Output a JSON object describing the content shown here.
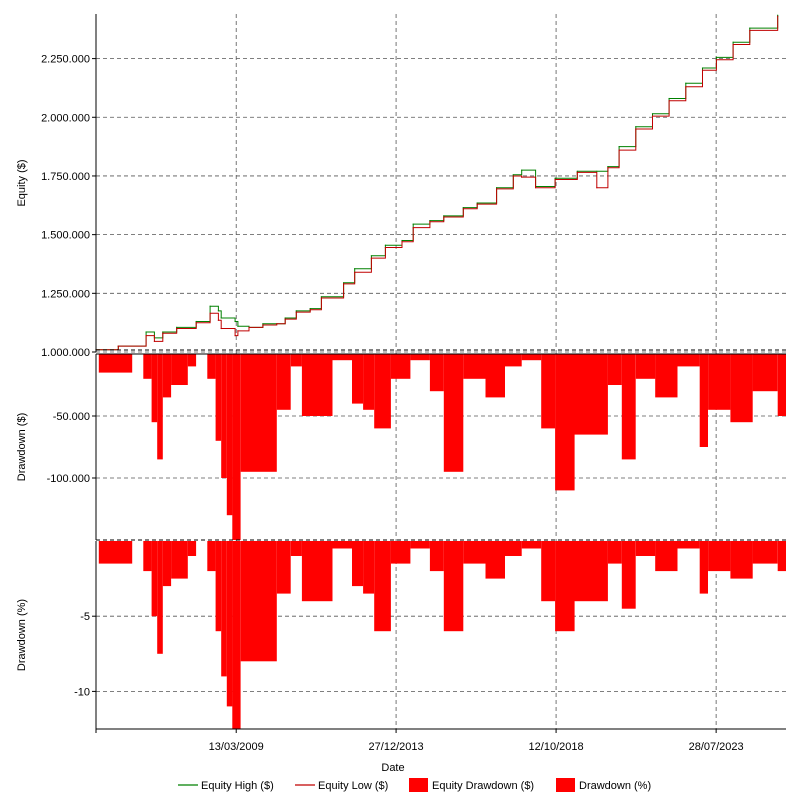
{
  "chart_data": [
    {
      "type": "line",
      "ylabel": "Equity ($)",
      "ylim": [
        1000000,
        2440000
      ],
      "yticks": [
        1000000,
        1250000,
        1500000,
        1750000,
        2000000,
        2250000
      ],
      "ytick_labels": [
        "1.000.000",
        "1.250.000",
        "1.500.000",
        "1.750.000",
        "2.000.000",
        "2.250.000"
      ],
      "grid": true,
      "series": [
        {
          "name": "Equity High ($)",
          "color": "#008000",
          "x": [
            "2005-01",
            "2005-09",
            "2006-07",
            "2006-10",
            "2007-01",
            "2007-06",
            "2008-01",
            "2008-06",
            "2008-09",
            "2008-10",
            "2009-03",
            "2009-04",
            "2009-08",
            "2010-01",
            "2010-06",
            "2010-09",
            "2011-01",
            "2011-06",
            "2011-10",
            "2012-06",
            "2012-10",
            "2013-04",
            "2013-09",
            "2014-03",
            "2014-07",
            "2015-01",
            "2015-06",
            "2016-01",
            "2016-06",
            "2017-01",
            "2017-07",
            "2017-10",
            "2018-03",
            "2018-10",
            "2019-06",
            "2020-01",
            "2020-05",
            "2020-09",
            "2021-03",
            "2021-09",
            "2022-03",
            "2022-09",
            "2023-03",
            "2023-08",
            "2024-02",
            "2024-08",
            "2025-06"
          ],
          "values": [
            1010000,
            1025000,
            1085000,
            1060000,
            1085000,
            1105000,
            1130000,
            1195000,
            1175000,
            1145000,
            1130000,
            1110000,
            1105000,
            1120000,
            1120000,
            1145000,
            1175000,
            1185000,
            1235000,
            1295000,
            1355000,
            1410000,
            1455000,
            1475000,
            1545000,
            1560000,
            1580000,
            1615000,
            1635000,
            1700000,
            1755000,
            1775000,
            1705000,
            1740000,
            1770000,
            1770000,
            1790000,
            1875000,
            1960000,
            2015000,
            2080000,
            2145000,
            2210000,
            2255000,
            2320000,
            2380000,
            2435000
          ]
        },
        {
          "name": "Equity Low ($)",
          "color": "#c00000",
          "x": [
            "2005-01",
            "2005-09",
            "2006-07",
            "2006-10",
            "2007-01",
            "2007-06",
            "2008-01",
            "2008-06",
            "2008-09",
            "2008-10",
            "2009-03",
            "2009-04",
            "2009-08",
            "2010-01",
            "2010-06",
            "2010-09",
            "2011-01",
            "2011-06",
            "2011-10",
            "2012-06",
            "2012-10",
            "2013-04",
            "2013-09",
            "2014-03",
            "2014-07",
            "2015-01",
            "2015-06",
            "2016-01",
            "2016-06",
            "2017-01",
            "2017-07",
            "2017-10",
            "2018-03",
            "2018-10",
            "2019-06",
            "2020-01",
            "2020-05",
            "2020-09",
            "2021-03",
            "2021-09",
            "2022-03",
            "2022-09",
            "2023-03",
            "2023-08",
            "2024-02",
            "2024-08",
            "2025-06"
          ],
          "values": [
            1010000,
            1025000,
            1070000,
            1045000,
            1080000,
            1100000,
            1125000,
            1165000,
            1135000,
            1100000,
            1070000,
            1090000,
            1105000,
            1115000,
            1120000,
            1140000,
            1170000,
            1180000,
            1230000,
            1290000,
            1340000,
            1400000,
            1445000,
            1470000,
            1530000,
            1555000,
            1575000,
            1610000,
            1630000,
            1695000,
            1750000,
            1745000,
            1700000,
            1735000,
            1765000,
            1700000,
            1785000,
            1860000,
            1950000,
            2005000,
            2070000,
            2130000,
            2200000,
            2245000,
            2310000,
            2370000,
            2430000
          ]
        }
      ]
    },
    {
      "type": "area",
      "ylabel": "Drawdown ($)",
      "ylim": [
        -150000,
        0
      ],
      "yticks": [
        -50000,
        -100000
      ],
      "ytick_labels": [
        "-50.000",
        "-100.000"
      ],
      "grid": true,
      "series": [
        {
          "name": "Equity Drawdown ($)",
          "color": "#ff0000",
          "x": [
            "2005-01",
            "2005-02",
            "2006-02",
            "2006-06",
            "2006-09",
            "2006-11",
            "2007-01",
            "2007-04",
            "2007-10",
            "2008-01",
            "2008-05",
            "2008-08",
            "2008-10",
            "2008-12",
            "2009-02",
            "2009-05",
            "2009-08",
            "2010-06",
            "2010-11",
            "2011-03",
            "2012-02",
            "2012-09",
            "2013-01",
            "2013-05",
            "2013-11",
            "2014-06",
            "2015-01",
            "2015-06",
            "2016-01",
            "2016-09",
            "2017-04",
            "2017-10",
            "2018-05",
            "2018-10",
            "2019-05",
            "2020-05",
            "2020-10",
            "2021-03",
            "2021-10",
            "2022-06",
            "2023-02",
            "2023-05",
            "2024-01",
            "2024-09",
            "2025-06"
          ],
          "values": [
            0,
            -15000,
            0,
            -20000,
            -55000,
            -85000,
            -35000,
            -25000,
            -10000,
            0,
            -20000,
            -70000,
            -100000,
            -130000,
            -150000,
            -95000,
            -95000,
            -45000,
            -10000,
            -50000,
            -5000,
            -40000,
            -45000,
            -60000,
            -20000,
            -5000,
            -30000,
            -95000,
            -20000,
            -35000,
            -10000,
            -5000,
            -60000,
            -110000,
            -65000,
            -25000,
            -85000,
            -20000,
            -35000,
            -10000,
            -75000,
            -45000,
            -55000,
            -30000,
            -50000
          ]
        }
      ]
    },
    {
      "type": "area",
      "ylabel": "Drawdown (%)",
      "xlabel": "Date",
      "ylim": [
        -12.5,
        0
      ],
      "yticks": [
        -5,
        -10
      ],
      "ytick_labels": [
        "-5",
        "-10"
      ],
      "x_range": [
        "2005-01",
        "2025-09"
      ],
      "xtick_dates": [
        "2009-03-13",
        "2013-12-27",
        "2018-10-12",
        "2023-07-28"
      ],
      "xtick_labels": [
        "13/03/2009",
        "27/12/2013",
        "12/10/2018",
        "28/07/2023"
      ],
      "grid": true,
      "series": [
        {
          "name": "Drawdown (%)",
          "color": "#ff0000",
          "x": [
            "2005-01",
            "2005-02",
            "2006-02",
            "2006-06",
            "2006-09",
            "2006-11",
            "2007-01",
            "2007-04",
            "2007-10",
            "2008-01",
            "2008-05",
            "2008-08",
            "2008-10",
            "2008-12",
            "2009-02",
            "2009-05",
            "2009-08",
            "2010-06",
            "2010-11",
            "2011-03",
            "2012-02",
            "2012-09",
            "2013-01",
            "2013-05",
            "2013-11",
            "2014-06",
            "2015-01",
            "2015-06",
            "2016-01",
            "2016-09",
            "2017-04",
            "2017-10",
            "2018-05",
            "2018-10",
            "2019-05",
            "2020-05",
            "2020-10",
            "2021-03",
            "2021-10",
            "2022-06",
            "2023-02",
            "2023-05",
            "2024-01",
            "2024-09",
            "2025-06"
          ],
          "values": [
            0,
            -1.5,
            0,
            -2.0,
            -5.0,
            -7.5,
            -3.0,
            -2.5,
            -1.0,
            0,
            -2.0,
            -6.0,
            -9.0,
            -11.0,
            -12.5,
            -8.0,
            -8.0,
            -3.5,
            -1.0,
            -4.0,
            -0.5,
            -3.0,
            -3.5,
            -6.0,
            -1.5,
            -0.5,
            -2.0,
            -6.0,
            -1.5,
            -2.5,
            -1.0,
            -0.5,
            -4.0,
            -6.0,
            -4.0,
            -1.5,
            -4.5,
            -1.0,
            -2.0,
            -0.5,
            -3.5,
            -2.0,
            -2.5,
            -1.5,
            -2.0
          ]
        }
      ]
    }
  ],
  "legend": {
    "placement": "bottom",
    "items": [
      {
        "label": "Equity High ($)",
        "color": "#008000",
        "kind": "line"
      },
      {
        "label": "Equity Low ($)",
        "color": "#c00000",
        "kind": "line"
      },
      {
        "label": "Equity Drawdown ($)",
        "color": "#ff0000",
        "kind": "box"
      },
      {
        "label": "Drawdown (%)",
        "color": "#ff0000",
        "kind": "box"
      }
    ]
  }
}
